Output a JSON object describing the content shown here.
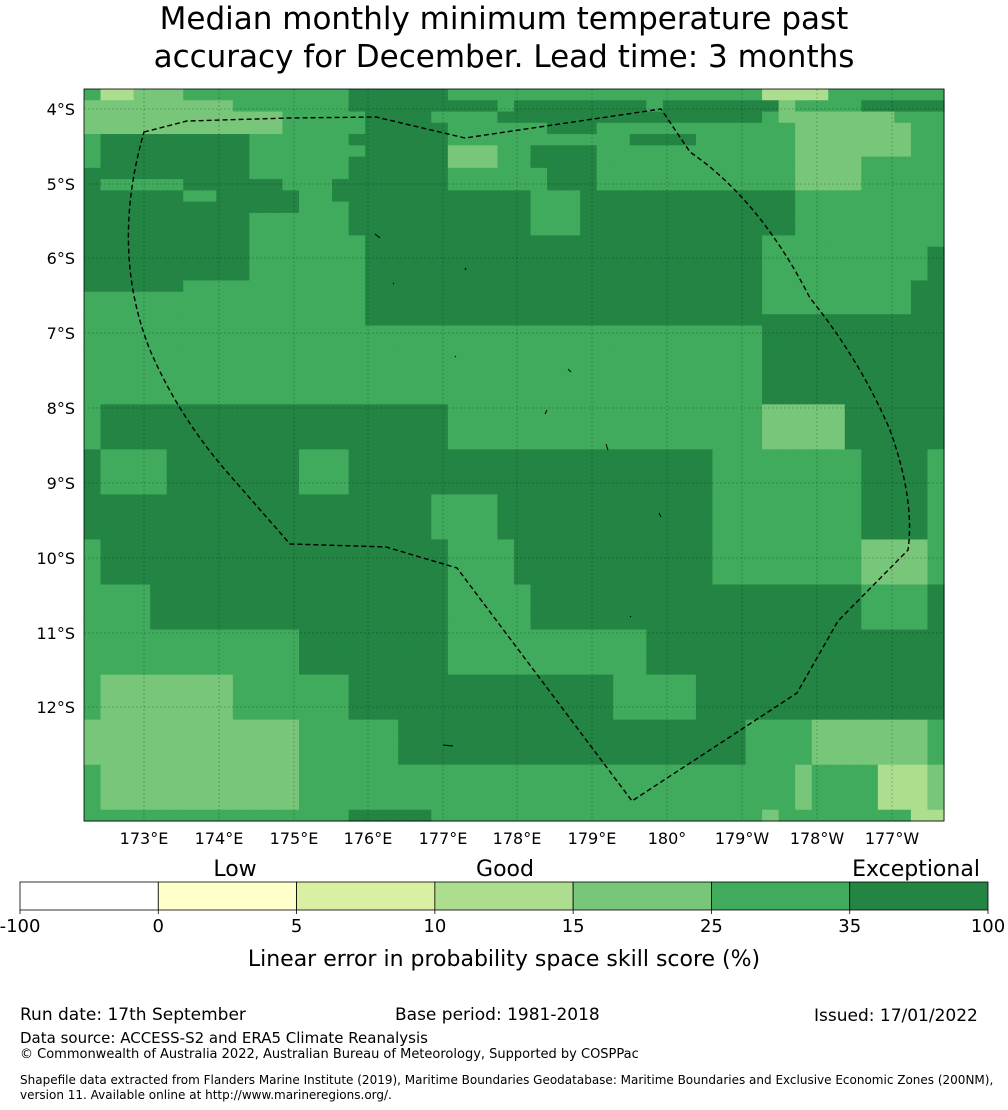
{
  "title": {
    "line1": "Median monthly minimum temperature past",
    "line2": "accuracy for December. Lead time: 3 months"
  },
  "map": {
    "lat_ticks": [
      "4°S",
      "5°S",
      "6°S",
      "7°S",
      "8°S",
      "9°S",
      "10°S",
      "11°S",
      "12°S"
    ],
    "lon_ticks": [
      "173°E",
      "174°E",
      "175°E",
      "176°E",
      "177°E",
      "178°E",
      "179°E",
      "180°",
      "179°W",
      "178°W",
      "177°W"
    ],
    "grid": [
      "5334445555555555666666555555555555555555533335555555",
      "4444444445555555666666666566666666566666664555566666",
      "4444444444445555566665555666666666666666654444444555",
      "4444444444445555566666555555666555555555555444444455",
      "5666666666555555666666555555555556666555555444444455",
      "5666666666555555566666444556666555555555555444444455",
      "5666666666555555666666444556666555555555555444455555",
      "6666666666555555666666555555666555555555555444455555",
      "6555556666665556666666555555666555555555555444455555",
      "6666665566666556666666666665556666666666666555555555",
      "6666666666666555666666666665556666666666666555555555",
      "6666666666555555666666666665556666666666666555555555",
      "6666666666555555666666666665556666666666666555555555",
      "6666666666555555566666666666666666666666655555555555",
      "6666666666555555566666666666666666666666655555555556",
      "6666666666555555566666666666666666666666655555555556",
      "6666666666555555566666666666666666666666655555555556",
      "6666665555555555566666666666666666666666655555555566",
      "5555555555555555566666666666666666666666655555555566",
      "5555555555555555566666666666666666666666655555555566",
      "5555555555555555566666666666666666666666666666666666",
      "5555555555555555555555555555555555555555566666666666",
      "5555555555555555555555555555555555555555566666666666",
      "5555555555555555555555555555555555555555566666666666",
      "5555555555555555555555555555555555555555566666666666",
      "5555555555555555555555555555555555555555566666666666",
      "5555555555555555555555555555555555555555566666666666",
      "5555555555555555555555555555555555555555566666666666",
      "5666666666666666666666555555555555555555544444666666",
      "5666666666666666666666555555555555555555544444666666",
      "5666666666666666666666555555555555555555544444666666",
      "5666666666666666666666555555555555555555544444666666",
      "6555566666666555666666666666666666666655555555566665",
      "6555566666666555666666666666666666666655555555566665",
      "6555566666666555666666666666666666666655555555566665",
      "6555566666666555666666666666666666666655555555566665",
      "6666666666666666666665555666666666666655555555566665",
      "6666666666666666666665555666666666666655555555566665",
      "6666666666666666666665555666666666666655555555566665",
      "6666666666666666666665555666666666666655555555566665",
      "5666666666666666666666555566666666666655555555544445",
      "5666666666666666666666555566666666666655555555544445",
      "5666666666666666666666555566666666666655555555544445",
      "5666666666666666666666555566666666666655555555544445",
      "5555666666666666666666555556666666666666666666655556",
      "5555666666666666666666555556666666666666666666655556",
      "5555666666666666666666555556666666666666666666655556",
      "5555666666666666666666555556666666666666666666655556",
      "5555555555555666666666555555555555666666666666666666",
      "5555555555555666666666555555555555666666666666666666",
      "5555555555555666666666555555555555666666666666666666",
      "5555555555555666666666555555555555666666666666666666",
      "5444444445555555666666666666666655555666666666666666",
      "5444444445555555666666666666666655555666666666666666",
      "5444444445555555666666666666666655555666666666666666",
      "5444444445555555666666666666666655555666666666666666",
      "4444444444444555555666666666666666666666555544444445",
      "4444444444444555555666666666666666666666555544444445",
      "4444444444444555555666666666666666666666555544444445",
      "4444444444444555555666666666666666666666555544444445",
      "5444444444444555555555555555555555555555555455553334",
      "5444444444444555555555555555555555555555555455553334",
      "5444444444444555555555555555555555555555555455553334",
      "5444444444444555555555555555555555555555555455553334",
      "5555555555555555666665555555555555555555545555555533"
    ]
  },
  "legend": {
    "categories": [
      "Low",
      "Good",
      "Exceptional"
    ],
    "tick_labels": [
      "-100",
      "0",
      "5",
      "10",
      "15",
      "25",
      "35",
      "100"
    ],
    "colors": [
      "#ffffff",
      "#ffffcc",
      "#d9f0a3",
      "#addd8e",
      "#78c679",
      "#41ab5d",
      "#238443"
    ],
    "label": "Linear error in probability space skill score (%)"
  },
  "footer": {
    "run_date": "Run date: 17th September",
    "base_period": "Base period: 1981-2018",
    "issued": "Issued: 17/01/2022",
    "data_source": "Data source: ACCESS-S2 and ERA5 Climate Reanalysis",
    "copyright": "© Commonwealth of Australia 2022, Australian Bureau of Meteorology, Supported by COSPPac",
    "shapefile_line1": "Shapefile data extracted from Flanders Marine Institute (2019), Maritime Boundaries Geodatabase: Maritime Boundaries and Exclusive Economic Zones (200NM),",
    "shapefile_line2": "version 11. Available online at http://www.marineregions.org/."
  }
}
